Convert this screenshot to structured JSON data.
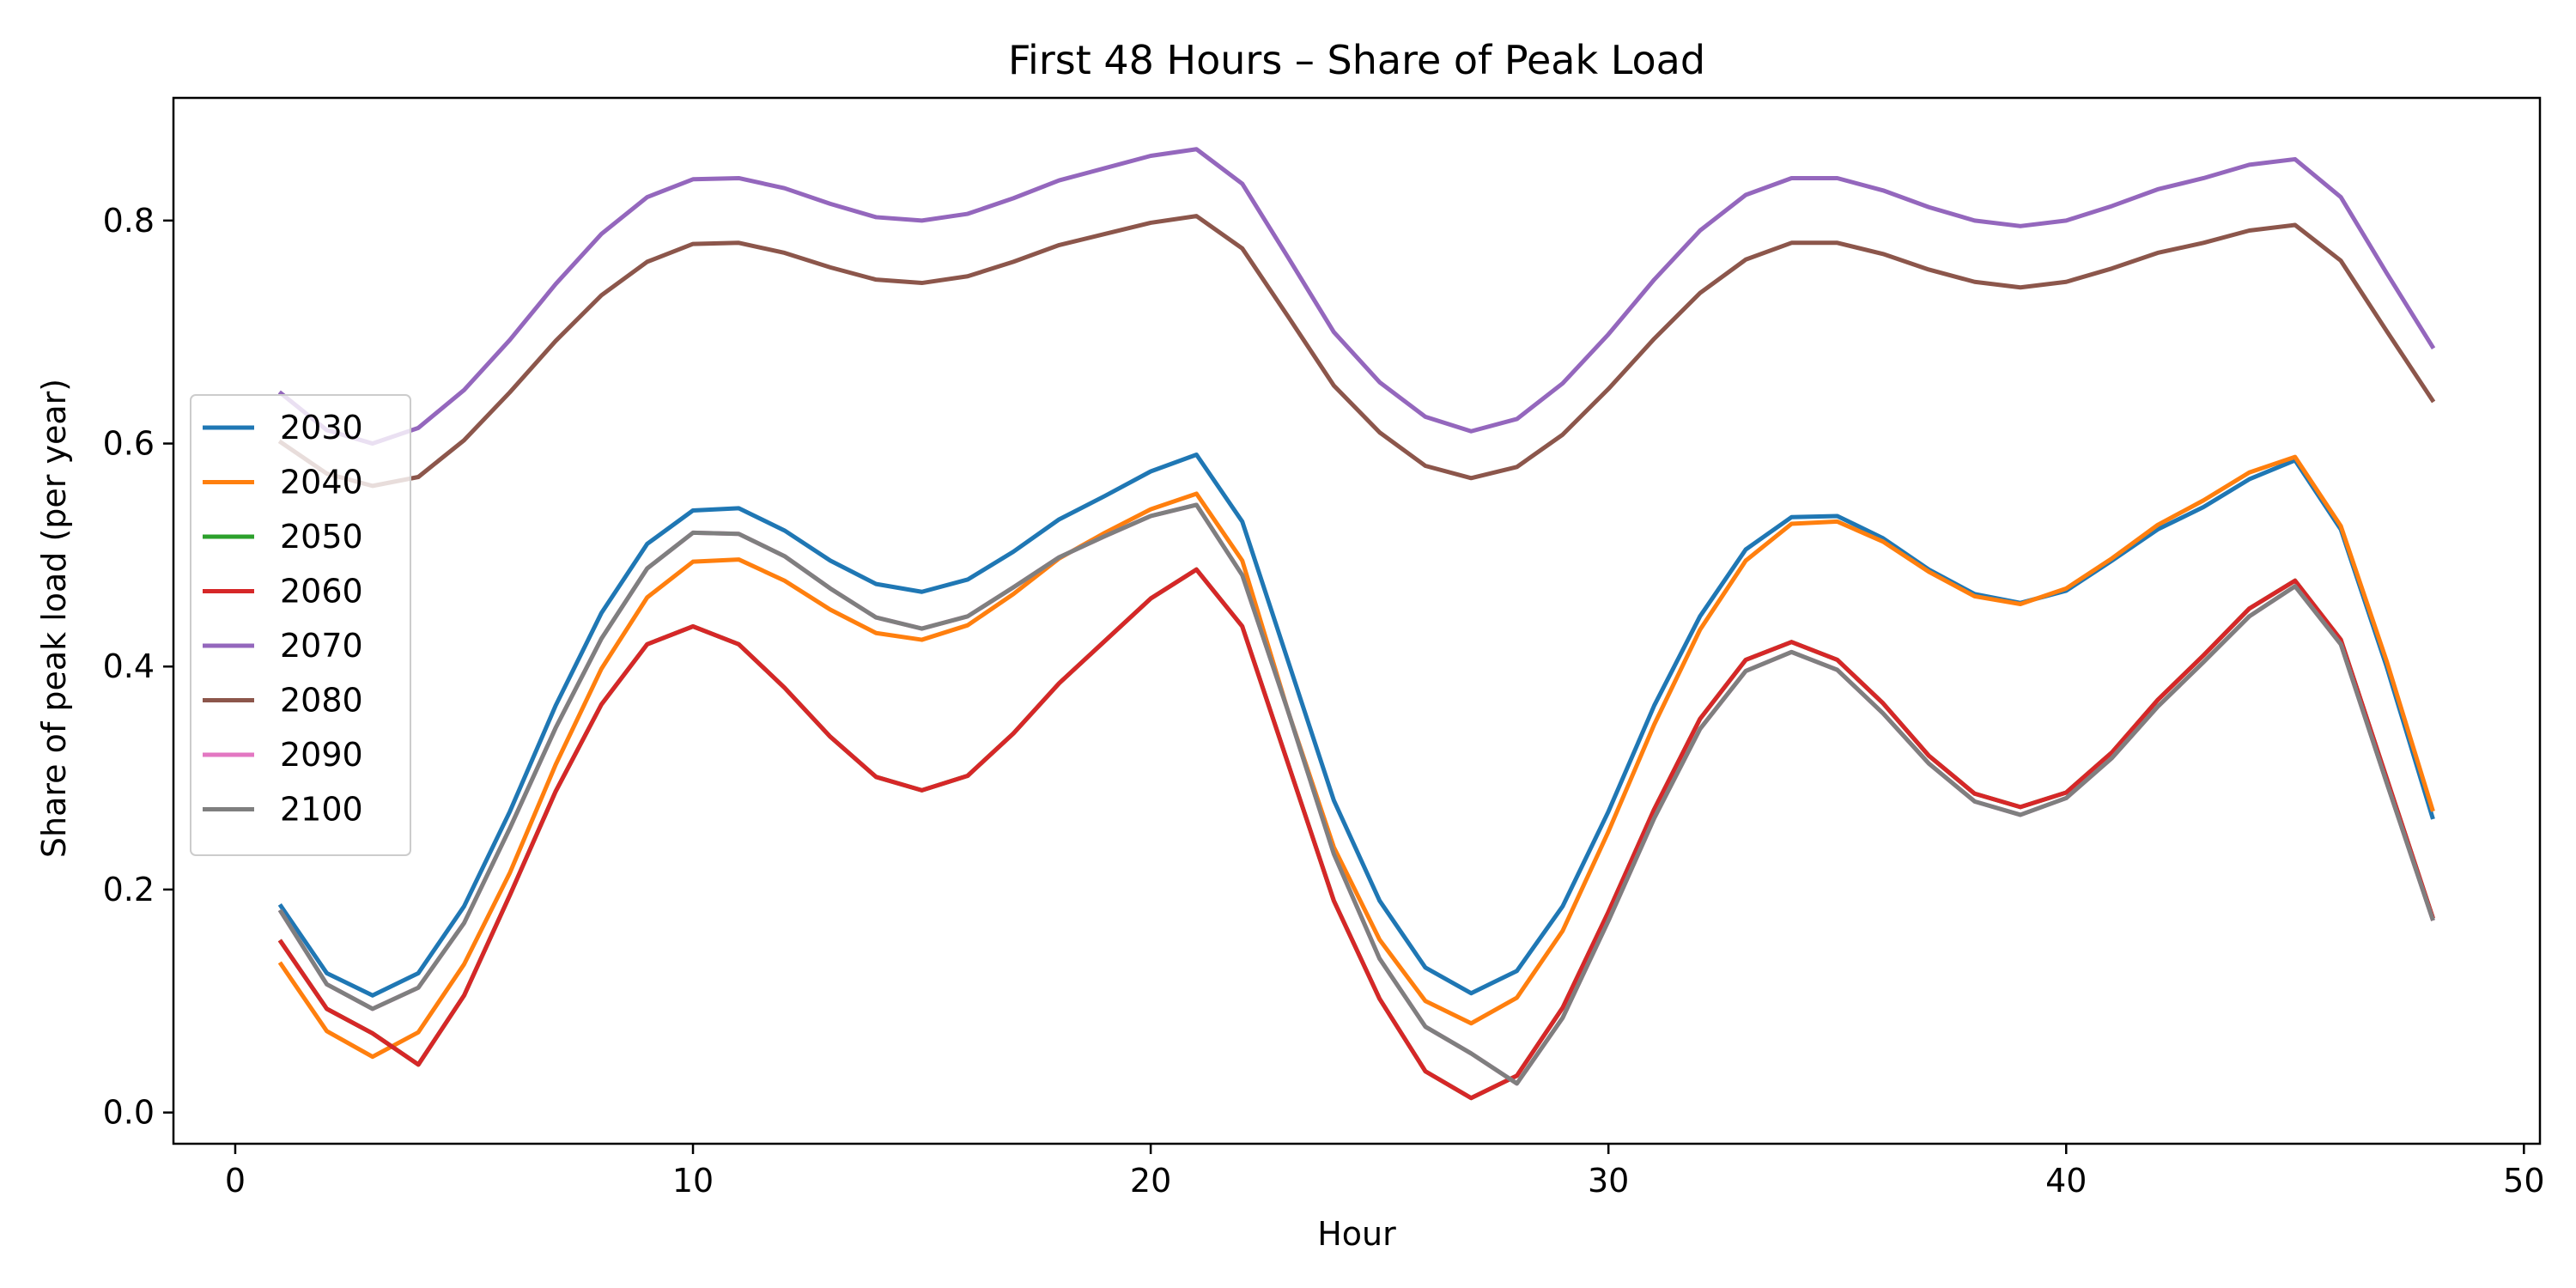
{
  "chart_data": {
    "type": "line",
    "title": "First 48 Hours – Share of Peak Load",
    "xlabel": "Hour",
    "ylabel": "Share of peak load (per year)",
    "xlim": [
      -1.35,
      50.35
    ],
    "ylim": [
      -0.028,
      0.91
    ],
    "xticks": [
      0,
      10,
      20,
      30,
      40,
      50
    ],
    "yticks": [
      0.0,
      0.2,
      0.4,
      0.6,
      0.8
    ],
    "legend_position": "center-left",
    "x": [
      1,
      2,
      3,
      4,
      5,
      6,
      7,
      8,
      9,
      10,
      11,
      12,
      13,
      14,
      15,
      16,
      17,
      18,
      19,
      20,
      21,
      22,
      23,
      24,
      25,
      26,
      27,
      28,
      29,
      30,
      31,
      32,
      33,
      34,
      35,
      36,
      37,
      38,
      39,
      40,
      41,
      42,
      43,
      44,
      45,
      46,
      47,
      48
    ],
    "series": [
      {
        "name": "2030",
        "color": "#1f77b4",
        "values": [
          0.185,
          0.125,
          0.105,
          0.125,
          0.185,
          0.27,
          0.365,
          0.448,
          0.51,
          0.54,
          0.542,
          0.522,
          0.495,
          0.474,
          0.467,
          0.478,
          0.503,
          0.532,
          0.553,
          0.575,
          0.59,
          0.53,
          0.405,
          0.28,
          0.19,
          0.13,
          0.107,
          0.127,
          0.185,
          0.27,
          0.365,
          0.445,
          0.505,
          0.534,
          0.535,
          0.515,
          0.487,
          0.465,
          0.457,
          0.468,
          0.495,
          0.523,
          0.543,
          0.568,
          0.585,
          0.523,
          0.4,
          0.265
        ]
      },
      {
        "name": "2040",
        "color": "#ff7f0e",
        "values": [
          0.133,
          0.073,
          0.05,
          0.072,
          0.133,
          0.215,
          0.312,
          0.398,
          0.462,
          0.494,
          0.496,
          0.477,
          0.451,
          0.43,
          0.424,
          0.437,
          0.465,
          0.497,
          0.52,
          0.541,
          0.555,
          0.495,
          0.36,
          0.238,
          0.155,
          0.1,
          0.08,
          0.103,
          0.163,
          0.252,
          0.348,
          0.433,
          0.495,
          0.528,
          0.53,
          0.512,
          0.485,
          0.463,
          0.456,
          0.47,
          0.497,
          0.527,
          0.549,
          0.574,
          0.588,
          0.526,
          0.405,
          0.272
        ]
      },
      {
        "name": "2050",
        "color": "#2ca02c",
        "values": [
          0.153,
          0.093,
          0.071,
          0.043,
          0.105,
          0.195,
          0.288,
          0.366,
          0.42,
          0.436,
          0.42,
          0.381,
          0.337,
          0.301,
          0.289,
          0.302,
          0.34,
          0.385,
          0.423,
          0.461,
          0.487,
          0.436,
          0.313,
          0.19,
          0.102,
          0.037,
          0.013,
          0.033,
          0.094,
          0.18,
          0.272,
          0.353,
          0.406,
          0.422,
          0.406,
          0.367,
          0.32,
          0.286,
          0.274,
          0.287,
          0.323,
          0.37,
          0.41,
          0.452,
          0.477,
          0.424,
          0.3,
          0.176
        ]
      },
      {
        "name": "2060",
        "color": "#d62728",
        "values": [
          0.153,
          0.093,
          0.071,
          0.043,
          0.105,
          0.195,
          0.288,
          0.366,
          0.42,
          0.436,
          0.42,
          0.381,
          0.337,
          0.301,
          0.289,
          0.302,
          0.34,
          0.385,
          0.423,
          0.461,
          0.487,
          0.436,
          0.313,
          0.19,
          0.102,
          0.037,
          0.013,
          0.033,
          0.094,
          0.18,
          0.272,
          0.353,
          0.406,
          0.422,
          0.406,
          0.367,
          0.32,
          0.286,
          0.274,
          0.287,
          0.323,
          0.37,
          0.41,
          0.452,
          0.477,
          0.424,
          0.3,
          0.176
        ]
      },
      {
        "name": "2070",
        "color": "#9467bd",
        "values": [
          0.645,
          0.612,
          0.6,
          0.614,
          0.648,
          0.693,
          0.743,
          0.788,
          0.821,
          0.837,
          0.838,
          0.829,
          0.815,
          0.803,
          0.8,
          0.806,
          0.82,
          0.836,
          0.847,
          0.858,
          0.864,
          0.833,
          0.767,
          0.7,
          0.655,
          0.624,
          0.611,
          0.622,
          0.654,
          0.698,
          0.747,
          0.791,
          0.823,
          0.838,
          0.838,
          0.827,
          0.812,
          0.8,
          0.795,
          0.8,
          0.813,
          0.828,
          0.838,
          0.85,
          0.855,
          0.821,
          0.753,
          0.687
        ]
      },
      {
        "name": "2080",
        "color": "#8c564b",
        "values": [
          0.601,
          0.573,
          0.562,
          0.57,
          0.603,
          0.646,
          0.692,
          0.733,
          0.763,
          0.779,
          0.78,
          0.771,
          0.758,
          0.747,
          0.744,
          0.75,
          0.763,
          0.778,
          0.788,
          0.798,
          0.804,
          0.775,
          0.714,
          0.652,
          0.61,
          0.58,
          0.569,
          0.579,
          0.608,
          0.649,
          0.694,
          0.735,
          0.765,
          0.78,
          0.78,
          0.77,
          0.756,
          0.745,
          0.74,
          0.745,
          0.757,
          0.771,
          0.78,
          0.791,
          0.796,
          0.764,
          0.701,
          0.639
        ]
      },
      {
        "name": "2090",
        "color": "#e377c2",
        "values": [
          0.18,
          0.115,
          0.093,
          0.112,
          0.17,
          0.255,
          0.345,
          0.425,
          0.488,
          0.52,
          0.519,
          0.499,
          0.47,
          0.444,
          0.434,
          0.445,
          0.471,
          0.498,
          0.517,
          0.535,
          0.545,
          0.482,
          0.36,
          0.232,
          0.138,
          0.077,
          0.053,
          0.026,
          0.085,
          0.172,
          0.264,
          0.344,
          0.396,
          0.413,
          0.397,
          0.358,
          0.313,
          0.279,
          0.267,
          0.282,
          0.318,
          0.364,
          0.404,
          0.445,
          0.472,
          0.42,
          0.296,
          0.174
        ]
      },
      {
        "name": "2100",
        "color": "#7f7f7f",
        "values": [
          0.18,
          0.115,
          0.093,
          0.112,
          0.17,
          0.255,
          0.345,
          0.425,
          0.488,
          0.52,
          0.519,
          0.499,
          0.47,
          0.444,
          0.434,
          0.445,
          0.471,
          0.498,
          0.517,
          0.535,
          0.545,
          0.482,
          0.36,
          0.232,
          0.138,
          0.077,
          0.053,
          0.026,
          0.085,
          0.172,
          0.264,
          0.344,
          0.396,
          0.413,
          0.397,
          0.358,
          0.313,
          0.279,
          0.267,
          0.282,
          0.318,
          0.364,
          0.404,
          0.445,
          0.472,
          0.42,
          0.296,
          0.174
        ]
      }
    ]
  }
}
